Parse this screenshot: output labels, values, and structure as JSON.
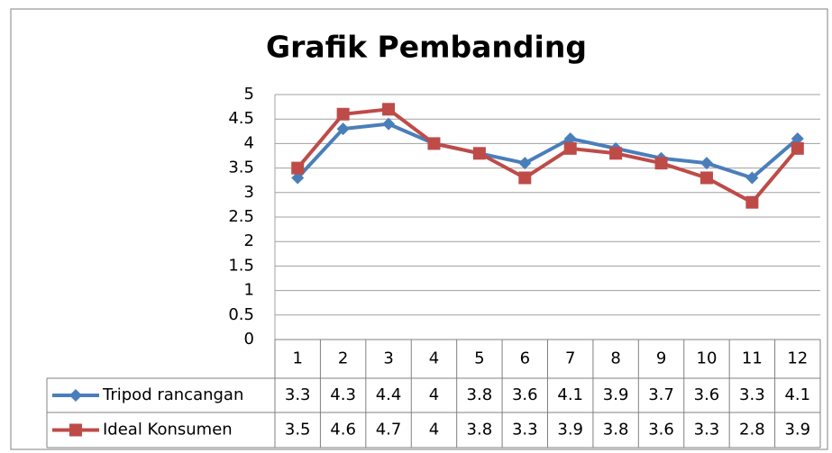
{
  "chart_data": {
    "type": "line",
    "title": "Grafik Pembanding",
    "categories": [
      "1",
      "2",
      "3",
      "4",
      "5",
      "6",
      "7",
      "8",
      "9",
      "10",
      "11",
      "12"
    ],
    "series": [
      {
        "name": "Tripod rancangan",
        "color": "#4a7ebb",
        "marker": "diamond",
        "values": [
          3.3,
          4.3,
          4.4,
          4,
          3.8,
          3.6,
          4.1,
          3.9,
          3.7,
          3.6,
          3.3,
          4.1
        ]
      },
      {
        "name": "Ideal Konsumen",
        "color": "#be4b48",
        "marker": "square",
        "values": [
          3.5,
          4.6,
          4.7,
          4,
          3.8,
          3.3,
          3.9,
          3.8,
          3.6,
          3.3,
          2.8,
          3.9
        ]
      }
    ],
    "ylim": [
      0,
      5
    ],
    "yticks": [
      0,
      0.5,
      1,
      1.5,
      2,
      2.5,
      3,
      3.5,
      4,
      4.5,
      5
    ],
    "grid": true
  }
}
